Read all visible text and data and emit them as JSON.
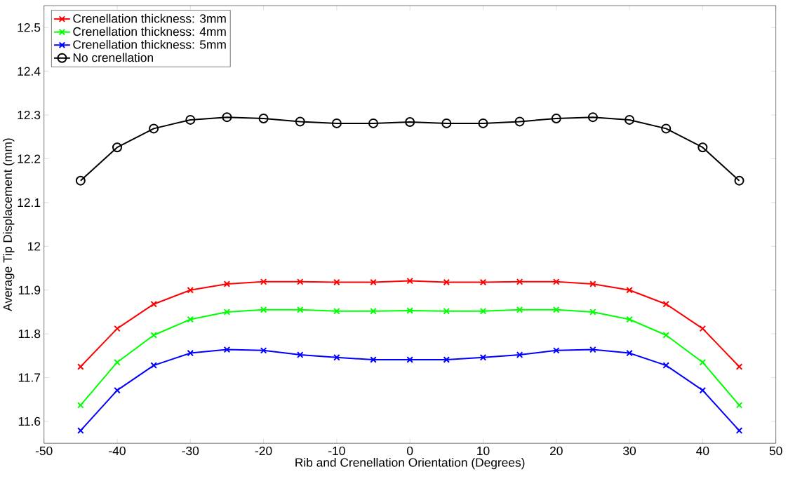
{
  "chart_data": {
    "type": "line",
    "xlabel": "Rib and Crenellation Orientation (Degrees)",
    "ylabel": "Average Tip Displacement (mm)",
    "x": [
      -45,
      -40,
      -35,
      -30,
      -25,
      -20,
      -15,
      -10,
      -5,
      0,
      5,
      10,
      15,
      20,
      25,
      30,
      35,
      40,
      45
    ],
    "series": [
      {
        "name": "Crenellation thickness: 3mm",
        "color": "#ff0000",
        "marker": "cross",
        "values": [
          11.725,
          11.812,
          11.868,
          11.9,
          11.914,
          11.919,
          11.919,
          11.918,
          11.918,
          11.921,
          11.918,
          11.918,
          11.919,
          11.919,
          11.914,
          11.9,
          11.868,
          11.812,
          11.725
        ]
      },
      {
        "name": "Crenellation thickness: 4mm",
        "color": "#00ff00",
        "marker": "cross",
        "values": [
          11.637,
          11.735,
          11.797,
          11.833,
          11.85,
          11.855,
          11.855,
          11.852,
          11.852,
          11.853,
          11.852,
          11.852,
          11.855,
          11.855,
          11.85,
          11.833,
          11.797,
          11.735,
          11.637
        ]
      },
      {
        "name": "Crenellation thickness: 5mm",
        "color": "#0000ff",
        "marker": "cross",
        "values": [
          11.579,
          11.671,
          11.728,
          11.756,
          11.764,
          11.762,
          11.752,
          11.746,
          11.741,
          11.741,
          11.741,
          11.746,
          11.752,
          11.762,
          11.764,
          11.756,
          11.728,
          11.671,
          11.579
        ]
      },
      {
        "name": "No crenellation",
        "color": "#000000",
        "marker": "circle",
        "values": [
          12.15,
          12.226,
          12.269,
          12.289,
          12.295,
          12.292,
          12.285,
          12.281,
          12.281,
          12.284,
          12.281,
          12.281,
          12.285,
          12.292,
          12.295,
          12.289,
          12.269,
          12.226,
          12.15
        ]
      }
    ],
    "xlim": [
      -50,
      50
    ],
    "ylim": [
      11.55,
      12.55
    ],
    "xticks": [
      -50,
      -40,
      -30,
      -20,
      -10,
      0,
      10,
      20,
      30,
      40,
      50
    ],
    "yticks": [
      11.6,
      11.7,
      11.8,
      11.9,
      12,
      12.1,
      12.2,
      12.3,
      12.4,
      12.5
    ],
    "grid": false,
    "legend": "top left",
    "line_style": "solid"
  }
}
